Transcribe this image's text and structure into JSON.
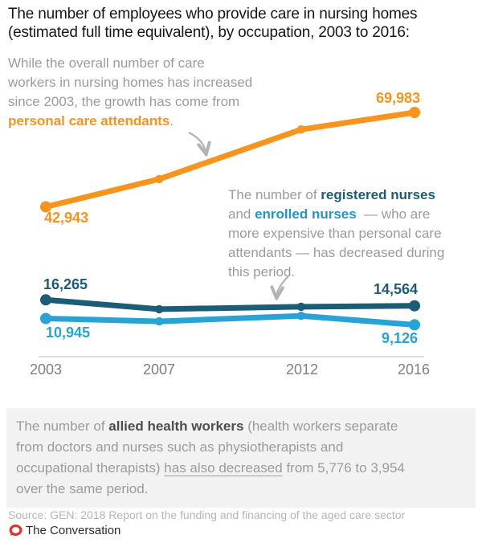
{
  "title": {
    "line1": "The number of employees who provide care in nursing homes",
    "line2": "(estimated full time equivalent), by occupation, 2003 to 2016:"
  },
  "annotations": {
    "growth": {
      "line1": "While the overall number of care",
      "line2": "workers in nursing homes has increased",
      "line3": "since 2003, the growth has come from",
      "highlight": "personal care attendants",
      "period": "."
    },
    "nurses": {
      "l1_pre": "The number of ",
      "l1_bold": "registered nurses",
      "l2_pre": "and ",
      "l2_bold": "enrolled nurses",
      "l2_post": "  — who are",
      "l3": "more expensive than personal care",
      "l4": "attendants — has decreased during",
      "l5": "this period."
    }
  },
  "chart_data": {
    "type": "line",
    "x": [
      2003,
      2007,
      2012,
      2016
    ],
    "x_tick_labels": [
      "2003",
      "2007",
      "2012",
      "2016"
    ],
    "series": [
      {
        "name": "personal care attendants",
        "color": "#f7941e",
        "values": [
          42943,
          50900,
          65100,
          69983
        ]
      },
      {
        "name": "registered nurses",
        "color": "#1d5c77",
        "values": [
          16265,
          13600,
          14300,
          14564
        ]
      },
      {
        "name": "enrolled nurses",
        "color": "#29a3d6",
        "values": [
          10945,
          10100,
          11700,
          9126
        ]
      }
    ],
    "value_labels": {
      "pca_start": "42,943",
      "pca_end": "69,983",
      "rn_start": "16,265",
      "rn_end": "14,564",
      "en_start": "10,945",
      "en_end": "9,126"
    },
    "title": "The number of employees who provide care in nursing homes (estimated full time equivalent), by occupation, 2003 to 2016",
    "xlabel": "",
    "ylabel": "",
    "ylim": [
      0,
      79000
    ],
    "grid": false,
    "legend": "inline-annotations",
    "note": "2007 and 2012 values estimated from plotted positions; 2003 and 2016 values labeled on chart"
  },
  "footer_note": {
    "l1_pre": "The number of ",
    "l1_bold": "allied health workers",
    "l1_post": " (health workers separate",
    "l2": "from doctors and nurses such as physiotherapists and",
    "l3_pre": "occupational therapists) ",
    "l3_underline": "has also decreased",
    "l3_post": " from 5,776 to 3,954",
    "l4": "over the same period."
  },
  "source_line": "Source: GEN: 2018 Report on the funding and financing of the aged care sector",
  "brand": {
    "name": "The Conversation",
    "logo_color": "#d8352a"
  },
  "colors": {
    "pca_orange": "#f7941e",
    "registered_dark_teal": "#1d5c77",
    "enrolled_light_blue": "#29a3d6",
    "annotation_gray": "#9b9b9b",
    "axis_gray": "#7f7f7f",
    "axis_line": "#d0d0d0",
    "footer_bg": "#f2f2f2",
    "source_gray": "#b5b5b5"
  }
}
